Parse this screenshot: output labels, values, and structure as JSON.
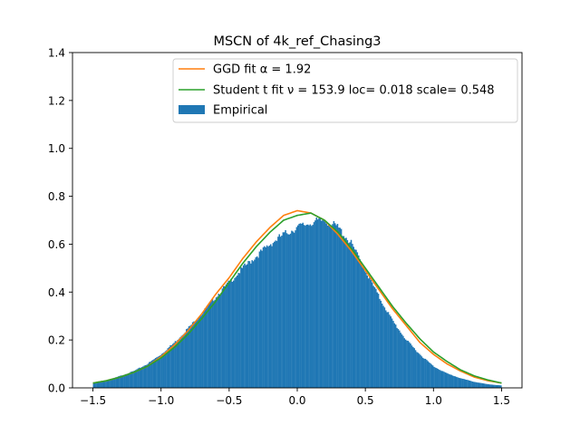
{
  "chart_data": {
    "type": "bar",
    "title": "MSCN of 4k_ref_Chasing3",
    "xlabel": "",
    "ylabel": "",
    "xlim": [
      -1.65,
      1.65
    ],
    "ylim": [
      0,
      1.4
    ],
    "xticks": [
      -1.5,
      -1.0,
      -0.5,
      0.0,
      0.5,
      1.0,
      1.5
    ],
    "xtick_labels": [
      "−1.5",
      "−1.0",
      "−0.5",
      "0.0",
      "0.5",
      "1.0",
      "1.5"
    ],
    "yticks": [
      0,
      0.2,
      0.4,
      0.6,
      0.8,
      1.0,
      1.2,
      1.4
    ],
    "ytick_labels": [
      "0.0",
      "0.2",
      "0.4",
      "0.6",
      "0.8",
      "1.0",
      "1.2",
      "1.4"
    ],
    "grid": false,
    "legend_position": "top-right",
    "colors": {
      "empirical": "#1f77b4",
      "ggd": "#ff7f0e",
      "student": "#2ca02c"
    },
    "legend": {
      "ggd": "GGD fit α = 1.92",
      "student": "Student t fit ν = 153.9 loc= 0.018 scale= 0.548",
      "empirical": "Empirical"
    },
    "histogram": {
      "name": "Empirical",
      "x": [
        -1.5,
        -1.4,
        -1.3,
        -1.2,
        -1.1,
        -1.0,
        -0.9,
        -0.8,
        -0.7,
        -0.6,
        -0.5,
        -0.4,
        -0.3,
        -0.2,
        -0.1,
        0.0,
        0.1,
        0.2,
        0.3,
        0.4,
        0.5,
        0.6,
        0.7,
        0.8,
        0.9,
        1.0,
        1.1,
        1.2,
        1.3,
        1.4,
        1.5
      ],
      "values": [
        0.02,
        0.03,
        0.05,
        0.07,
        0.1,
        0.14,
        0.19,
        0.25,
        0.31,
        0.38,
        0.44,
        0.5,
        0.55,
        0.6,
        0.64,
        0.67,
        0.69,
        0.7,
        0.67,
        0.6,
        0.49,
        0.38,
        0.28,
        0.2,
        0.14,
        0.09,
        0.06,
        0.04,
        0.025,
        0.015,
        0.01
      ],
      "bins_drawn": 330
    },
    "series": [
      {
        "name": "GGD fit α = 1.92",
        "type": "line",
        "x": [
          -1.5,
          -1.4,
          -1.3,
          -1.2,
          -1.1,
          -1.0,
          -0.9,
          -0.8,
          -0.7,
          -0.6,
          -0.5,
          -0.4,
          -0.3,
          -0.2,
          -0.1,
          0.0,
          0.1,
          0.2,
          0.3,
          0.4,
          0.5,
          0.6,
          0.7,
          0.8,
          0.9,
          1.0,
          1.1,
          1.2,
          1.3,
          1.4,
          1.5
        ],
        "values": [
          0.02,
          0.03,
          0.045,
          0.065,
          0.09,
          0.13,
          0.18,
          0.24,
          0.31,
          0.39,
          0.46,
          0.54,
          0.61,
          0.67,
          0.72,
          0.74,
          0.73,
          0.7,
          0.64,
          0.57,
          0.49,
          0.41,
          0.33,
          0.26,
          0.19,
          0.14,
          0.1,
          0.07,
          0.045,
          0.03,
          0.02
        ]
      },
      {
        "name": "Student t fit ν = 153.9 loc= 0.018 scale= 0.548",
        "type": "line",
        "x": [
          -1.5,
          -1.4,
          -1.3,
          -1.2,
          -1.1,
          -1.0,
          -0.9,
          -0.8,
          -0.7,
          -0.6,
          -0.5,
          -0.4,
          -0.3,
          -0.2,
          -0.1,
          0.0,
          0.1,
          0.2,
          0.3,
          0.4,
          0.5,
          0.6,
          0.7,
          0.8,
          0.9,
          1.0,
          1.1,
          1.2,
          1.3,
          1.4,
          1.5
        ],
        "values": [
          0.02,
          0.03,
          0.045,
          0.065,
          0.09,
          0.125,
          0.17,
          0.225,
          0.29,
          0.36,
          0.44,
          0.52,
          0.59,
          0.65,
          0.7,
          0.72,
          0.73,
          0.7,
          0.65,
          0.58,
          0.5,
          0.42,
          0.34,
          0.27,
          0.205,
          0.15,
          0.11,
          0.075,
          0.05,
          0.033,
          0.02
        ]
      }
    ]
  }
}
